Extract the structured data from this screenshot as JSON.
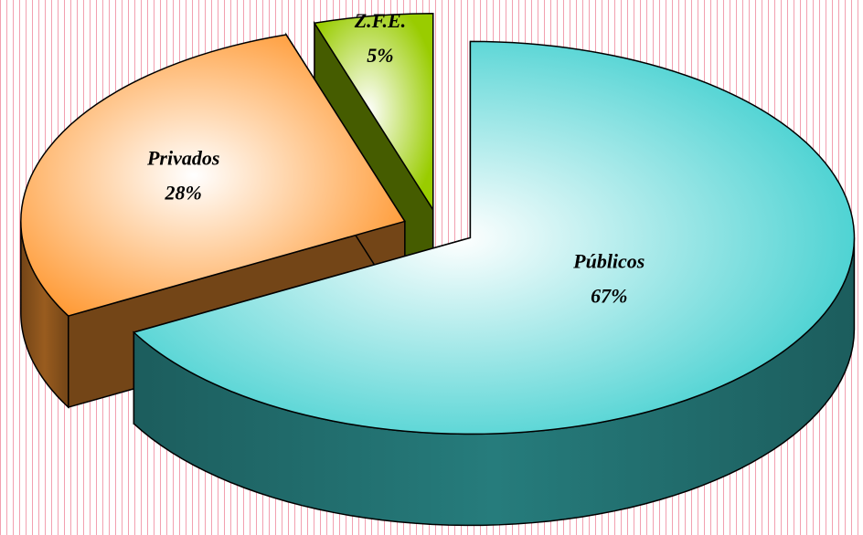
{
  "chart_data": {
    "type": "pie",
    "categories": [
      "Públicos",
      "Privados",
      "Z.F.E."
    ],
    "values": [
      67,
      28,
      5
    ],
    "value_labels": [
      "67%",
      "28%",
      "5%"
    ],
    "colors": [
      "#3fcfcf",
      "#ff9933",
      "#99cc00"
    ]
  }
}
